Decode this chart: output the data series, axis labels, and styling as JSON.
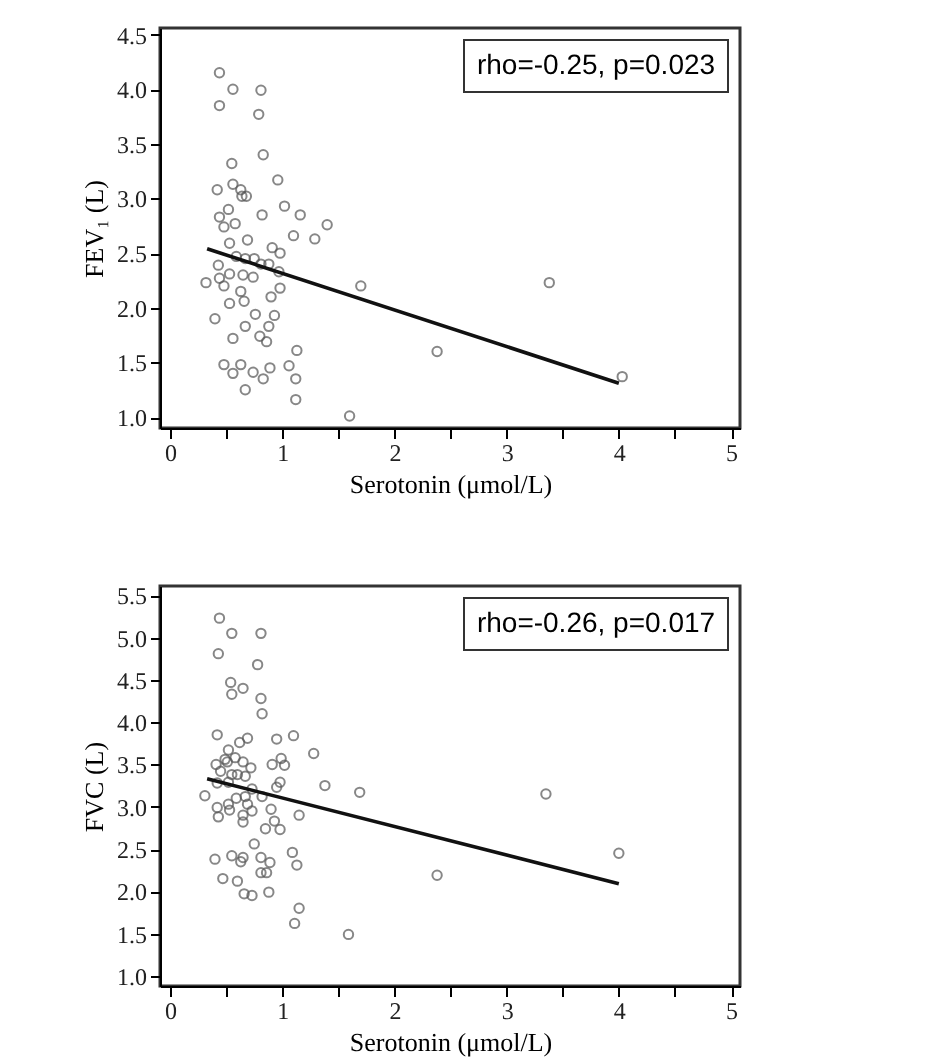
{
  "chart_data": [
    {
      "type": "scatter",
      "xlabel": "Serotonin (μmol/L)",
      "ylabel": "FEV₁ (L)",
      "annotations": [
        "rho=-0.25, p=0.023"
      ],
      "grid": false,
      "xlim": [
        -0.09,
        5.08
      ],
      "ylim": [
        0.9,
        4.56
      ],
      "xticks": [
        0,
        {
          "value": 0.5,
          "label": null
        },
        1,
        {
          "value": 1.5,
          "label": null
        },
        2,
        {
          "value": 2.5,
          "label": null
        },
        3,
        {
          "value": 3.5,
          "label": null
        },
        4,
        {
          "value": 4.5,
          "label": null
        },
        5
      ],
      "yticks": [
        {
          "value": 1,
          "label": "1.0"
        },
        {
          "value": 1.5,
          "label": "1.5"
        },
        {
          "value": 2,
          "label": "2.0"
        },
        {
          "value": 2.5,
          "label": "2.5"
        },
        {
          "value": 3,
          "label": "3.0"
        },
        {
          "value": 3.5,
          "label": "3.5"
        },
        {
          "value": 4,
          "label": "4.0"
        },
        {
          "value": 4.5,
          "label": "4.5"
        }
      ],
      "series": [
        {
          "marker": "circle",
          "color": "#555555",
          "x": [
            0.44,
            0.56,
            0.81,
            0.44,
            0.79,
            0.83,
            0.55,
            0.56,
            0.42,
            0.63,
            0.68,
            0.64,
            0.96,
            1.02,
            1.16,
            1.4,
            1.29,
            1.1,
            0.82,
            0.52,
            0.44,
            0.48,
            0.58,
            0.53,
            0.69,
            0.43,
            0.59,
            0.67,
            0.75,
            0.81,
            0.88,
            0.91,
            0.98,
            0.97,
            0.53,
            0.65,
            0.74,
            0.44,
            0.32,
            0.48,
            0.63,
            0.98,
            1.7,
            0.66,
            0.53,
            0.9,
            0.76,
            0.93,
            0.4,
            0.67,
            0.88,
            0.56,
            0.8,
            0.86,
            1.13,
            0.48,
            0.63,
            0.56,
            0.74,
            0.89,
            0.83,
            1.06,
            1.12,
            0.67,
            1.12,
            1.6,
            2.38,
            3.38,
            4.03
          ],
          "values": [
            4.15,
            4.0,
            3.99,
            3.85,
            3.77,
            3.4,
            3.32,
            3.13,
            3.08,
            3.08,
            3.02,
            3.02,
            3.17,
            2.93,
            2.85,
            2.76,
            2.63,
            2.66,
            2.85,
            2.9,
            2.83,
            2.74,
            2.77,
            2.59,
            2.62,
            2.39,
            2.47,
            2.45,
            2.45,
            2.4,
            2.4,
            2.55,
            2.5,
            2.33,
            2.31,
            2.3,
            2.28,
            2.27,
            2.23,
            2.2,
            2.15,
            2.18,
            2.2,
            2.06,
            2.04,
            2.1,
            1.94,
            1.93,
            1.9,
            1.83,
            1.83,
            1.72,
            1.74,
            1.69,
            1.61,
            1.48,
            1.48,
            1.4,
            1.41,
            1.45,
            1.35,
            1.47,
            1.35,
            1.25,
            1.16,
            1.01,
            1.6,
            2.23,
            1.37
          ]
        },
        {
          "type": "line",
          "color": "#111111",
          "x": [
            0.33,
            4.0
          ],
          "values": [
            2.54,
            1.31
          ]
        }
      ]
    },
    {
      "type": "scatter",
      "xlabel": "Serotonin (μmol/L)",
      "ylabel": "FVC (L)",
      "annotations": [
        "rho=-0.26, p=0.017"
      ],
      "grid": false,
      "xlim": [
        -0.09,
        5.08
      ],
      "ylim": [
        0.88,
        5.61
      ],
      "xticks": [
        0,
        {
          "value": 0.5,
          "label": null
        },
        1,
        {
          "value": 1.5,
          "label": null
        },
        2,
        {
          "value": 2.5,
          "label": null
        },
        3,
        {
          "value": 3.5,
          "label": null
        },
        4,
        {
          "value": 4.5,
          "label": null
        },
        5
      ],
      "yticks": [
        {
          "value": 1,
          "label": "1.0"
        },
        {
          "value": 1.5,
          "label": "1.5"
        },
        {
          "value": 2,
          "label": "2.0"
        },
        {
          "value": 2.5,
          "label": "2.5"
        },
        {
          "value": 3,
          "label": "3.0"
        },
        {
          "value": 3.5,
          "label": "3.5"
        },
        {
          "value": 4,
          "label": "4.0"
        },
        {
          "value": 4.5,
          "label": "4.5"
        },
        {
          "value": 5,
          "label": "5.0"
        },
        {
          "value": 5.5,
          "label": "5.5"
        }
      ],
      "series": [
        {
          "marker": "circle",
          "color": "#555555",
          "x": [
            0.44,
            0.55,
            0.81,
            0.43,
            0.78,
            0.54,
            0.65,
            0.55,
            0.81,
            0.82,
            0.42,
            0.69,
            0.62,
            0.95,
            1.1,
            1.28,
            0.52,
            0.49,
            0.58,
            0.41,
            0.51,
            0.65,
            0.72,
            0.99,
            1.02,
            0.91,
            0.45,
            0.55,
            0.6,
            0.67,
            0.42,
            0.52,
            0.73,
            0.98,
            0.95,
            1.38,
            1.69,
            0.31,
            0.59,
            0.67,
            0.82,
            0.52,
            0.42,
            0.69,
            0.9,
            0.53,
            0.73,
            0.43,
            0.65,
            0.65,
            0.93,
            1.15,
            0.85,
            0.98,
            0.75,
            0.4,
            0.55,
            0.65,
            0.81,
            1.09,
            0.63,
            0.89,
            1.13,
            0.47,
            0.6,
            0.81,
            0.86,
            0.66,
            0.73,
            0.88,
            1.15,
            1.11,
            1.59,
            2.38,
            3.35,
            4.0
          ],
          "values": [
            5.23,
            5.05,
            5.05,
            4.81,
            4.68,
            4.47,
            4.4,
            4.33,
            4.28,
            4.1,
            3.85,
            3.81,
            3.76,
            3.8,
            3.84,
            3.63,
            3.67,
            3.56,
            3.58,
            3.5,
            3.53,
            3.53,
            3.46,
            3.57,
            3.49,
            3.5,
            3.42,
            3.38,
            3.38,
            3.36,
            3.28,
            3.29,
            3.21,
            3.29,
            3.23,
            3.25,
            3.17,
            3.13,
            3.1,
            3.12,
            3.12,
            3.03,
            2.99,
            3.03,
            2.97,
            2.96,
            2.95,
            2.88,
            2.9,
            2.82,
            2.83,
            2.9,
            2.74,
            2.73,
            2.56,
            2.38,
            2.42,
            2.4,
            2.4,
            2.46,
            2.35,
            2.34,
            2.31,
            2.15,
            2.12,
            2.22,
            2.22,
            1.97,
            1.95,
            1.99,
            1.8,
            1.62,
            1.49,
            2.19,
            3.15,
            2.45
          ]
        },
        {
          "type": "line",
          "color": "#111111",
          "x": [
            0.33,
            4.0
          ],
          "values": [
            3.33,
            2.09
          ]
        }
      ]
    }
  ]
}
